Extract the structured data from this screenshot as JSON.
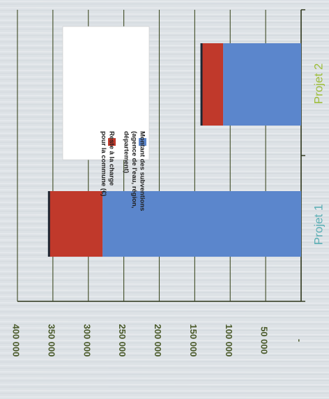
{
  "chart_data": {
    "type": "bar",
    "stacked": true,
    "orientation": "rotated-page",
    "categories": [
      "Projet 1",
      "Projet 2"
    ],
    "category_colors": [
      "#5aaeb4",
      "#9dbd3a"
    ],
    "series": [
      {
        "name": "Montant des subventions (agence de l'eau, région, département)",
        "values": [
          280000,
          110000
        ],
        "color": "#5b86cc"
      },
      {
        "name": "Reste à charge pour la commune (€)",
        "values": [
          75000,
          30000
        ],
        "color": "#c0392b"
      }
    ],
    "legend": {
      "items": [
        {
          "lines": [
            "Montant des subventions",
            "(agence de l'eau, région,",
            "département)"
          ],
          "color": "#5b86cc"
        },
        {
          "lines": [
            "Reste à la charge",
            "pour la commune (€)"
          ],
          "color": "#c0392b"
        }
      ]
    },
    "value_axis": {
      "ticks": [
        0,
        50000,
        100000,
        150000,
        200000,
        250000,
        300000,
        350000,
        400000
      ],
      "tick_labels": [
        "-",
        "50 000",
        "100 000",
        "150 000",
        "200 000",
        "250 000",
        "300 000",
        "350 000",
        "400 000"
      ],
      "min": 0,
      "max": 400000
    },
    "grid": true,
    "legend_position": "top"
  }
}
